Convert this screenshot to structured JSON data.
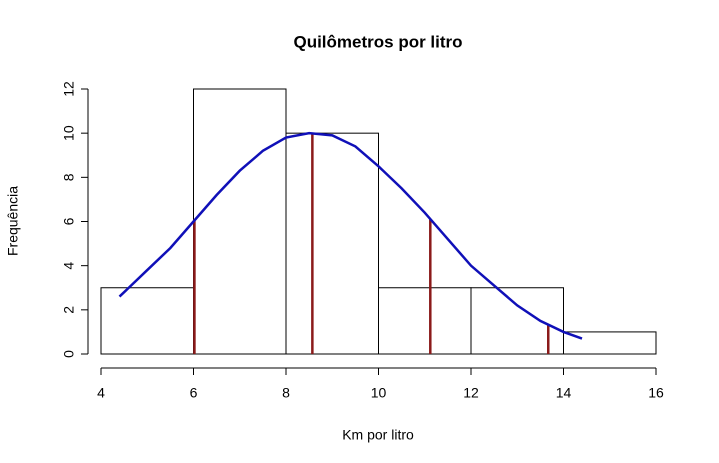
{
  "chart_data": {
    "type": "histogram",
    "title": "Quilômetros por litro",
    "x_label": "Km por litro",
    "y_label": "Frequência",
    "bins": [
      4,
      6,
      8,
      10,
      12,
      14,
      16
    ],
    "values": [
      3,
      12,
      10,
      3,
      3,
      1
    ],
    "color": "#ffffff",
    "edge_color": "#000000",
    "curve": {
      "color": "#1010b8",
      "x": [
        4.4,
        5,
        5.5,
        6,
        6.5,
        7,
        7.5,
        8,
        8.5,
        9,
        9.5,
        10,
        10.5,
        11,
        11.5,
        12,
        12.5,
        13,
        13.5,
        14,
        14.4
      ],
      "values": [
        2.6,
        3.8,
        4.8,
        6.0,
        7.2,
        8.3,
        9.2,
        9.8,
        10.0,
        9.9,
        9.4,
        8.5,
        7.5,
        6.4,
        5.2,
        4.0,
        3.1,
        2.2,
        1.5,
        1.0,
        0.7
      ]
    },
    "lines": {
      "color": "#8b1a1a",
      "x": [
        6.02,
        8.57,
        11.12,
        13.67
      ],
      "values": [
        6.1,
        10,
        6.1,
        1.35
      ]
    },
    "xlim": [
      4,
      16
    ],
    "ylim": [
      0,
      12
    ],
    "xticks": [
      4,
      6,
      8,
      10,
      12,
      14,
      16
    ],
    "yticks": [
      0,
      2,
      4,
      6,
      8,
      10,
      12
    ]
  }
}
